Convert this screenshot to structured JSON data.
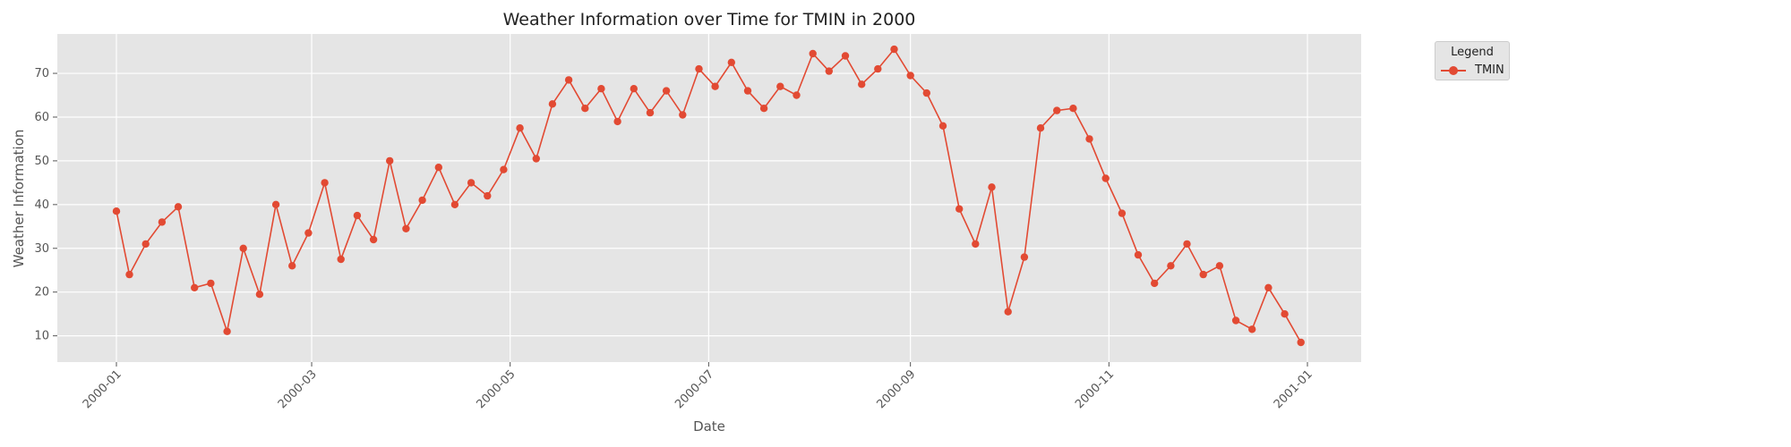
{
  "chart_data": {
    "type": "line",
    "title": "Weather Information over Time for TMIN in 2000",
    "xlabel": "Date",
    "ylabel": "Weather Information",
    "x_ticks": [
      "2000-01",
      "2000-03",
      "2000-05",
      "2000-07",
      "2000-09",
      "2000-11",
      "2001-01"
    ],
    "y_ticks": [
      10,
      20,
      30,
      40,
      50,
      60,
      70
    ],
    "xlim": [
      "2000-01-01",
      "2001-01-01"
    ],
    "ylim": [
      4,
      79
    ],
    "grid": true,
    "legend_title": "Legend",
    "legend_position": "outside-top-right",
    "series": [
      {
        "name": "TMIN",
        "color": "#e24a33",
        "marker": "circle",
        "x": [
          "2000-01-01",
          "2000-01-05",
          "2000-01-10",
          "2000-01-15",
          "2000-01-20",
          "2000-01-25",
          "2000-01-30",
          "2000-02-04",
          "2000-02-09",
          "2000-02-14",
          "2000-02-19",
          "2000-02-24",
          "2000-02-29",
          "2000-03-05",
          "2000-03-10",
          "2000-03-15",
          "2000-03-20",
          "2000-03-25",
          "2000-03-30",
          "2000-04-04",
          "2000-04-09",
          "2000-04-14",
          "2000-04-19",
          "2000-04-24",
          "2000-04-29",
          "2000-05-04",
          "2000-05-09",
          "2000-05-14",
          "2000-05-19",
          "2000-05-24",
          "2000-05-29",
          "2000-06-03",
          "2000-06-08",
          "2000-06-13",
          "2000-06-18",
          "2000-06-23",
          "2000-06-28",
          "2000-07-03",
          "2000-07-08",
          "2000-07-13",
          "2000-07-18",
          "2000-07-23",
          "2000-07-28",
          "2000-08-02",
          "2000-08-07",
          "2000-08-12",
          "2000-08-17",
          "2000-08-22",
          "2000-08-27",
          "2000-09-01",
          "2000-09-06",
          "2000-09-11",
          "2000-09-16",
          "2000-09-21",
          "2000-09-26",
          "2000-10-01",
          "2000-10-06",
          "2000-10-11",
          "2000-10-16",
          "2000-10-21",
          "2000-10-26",
          "2000-10-31",
          "2000-11-05",
          "2000-11-10",
          "2000-11-15",
          "2000-11-20",
          "2000-11-25",
          "2000-11-30",
          "2000-12-05",
          "2000-12-10",
          "2000-12-15",
          "2000-12-20",
          "2000-12-25",
          "2000-12-30"
        ],
        "values": [
          38.5,
          24,
          31,
          36,
          39.5,
          21,
          22,
          11,
          30,
          19.5,
          40,
          26,
          33.5,
          45,
          27.5,
          37.5,
          32,
          50,
          34.5,
          41,
          48.5,
          40,
          45,
          42,
          48,
          57.5,
          50.5,
          63,
          68.5,
          62,
          66.5,
          59,
          66.5,
          61,
          66,
          60.5,
          71,
          67,
          72.5,
          66,
          62,
          67,
          65,
          74.5,
          70.5,
          74,
          67.5,
          71,
          75.5,
          69.5,
          65.5,
          58,
          39,
          31,
          44,
          15.5,
          28,
          57.5,
          61.5,
          62,
          55,
          46,
          38,
          28.5,
          22,
          26,
          31,
          24,
          26,
          13.5,
          11.5,
          21,
          15,
          8.5
        ]
      }
    ]
  }
}
